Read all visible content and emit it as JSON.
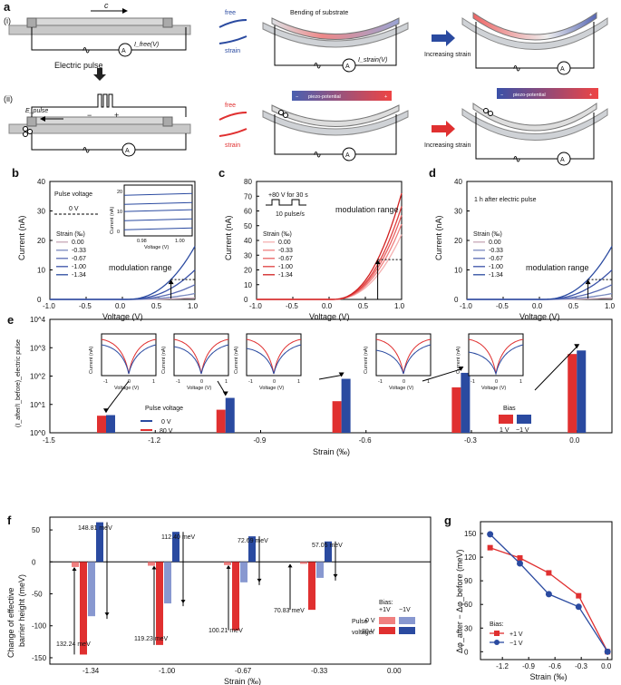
{
  "colors": {
    "red": "#e03030",
    "blue": "#2a4aa0",
    "lightred": "#f08080",
    "lightblue": "#8898d0",
    "gray": "#c0c0c0"
  },
  "panel_a": {
    "label": "a",
    "sub_i": "(i)",
    "sub_ii": "(ii)",
    "c_label": "c",
    "i_free": "I_free(V)",
    "i_strain": "I_strain(V)",
    "electric_pulse": "Electric pulse",
    "e_pulse": "E_pulse",
    "minus": "−",
    "plus": "+",
    "free": "free",
    "strain": "strain",
    "bending": "Bending of substrate",
    "increasing_strain": "Increasing strain",
    "piezo": "piezo-potential",
    "ammeter": "A"
  },
  "chart_data": [
    {
      "id": "b",
      "type": "line",
      "label": "b",
      "title": "Pulse voltage",
      "pulse": "0 V",
      "xlabel": "Voltage (V)",
      "ylabel": "Current (nA)",
      "xlim": [
        -1,
        1
      ],
      "ylim": [
        0,
        40
      ],
      "xticks": [
        "-1.0",
        "-0.5",
        "0.0",
        "0.5",
        "1.0"
      ],
      "yticks": [
        "0",
        "10",
        "20",
        "30",
        "40"
      ],
      "legend_title": "Strain (‰)",
      "strains": [
        "0.00",
        "-0.33",
        "-0.67",
        "-1.00",
        "-1.34"
      ],
      "endpoints": [
        0.5,
        2,
        5,
        10,
        18
      ],
      "annotation": "modulation range",
      "inset": {
        "xticks": [
          "0.98",
          "1.00"
        ],
        "yticks": [
          "0",
          "10",
          "20"
        ],
        "ylabel": "Current (nA)",
        "xlabel": "Voltage (V)"
      }
    },
    {
      "id": "c",
      "type": "line",
      "label": "c",
      "pulse": "+80 V for 30 s",
      "rate": "10 pulse/s",
      "xlabel": "Voltage (V)",
      "ylabel": "Current (nA)",
      "xlim": [
        -1,
        1
      ],
      "ylim": [
        0,
        80
      ],
      "xticks": [
        "-1.0",
        "-0.5",
        "0.0",
        "0.5",
        "1.0"
      ],
      "yticks": [
        "0",
        "10",
        "20",
        "30",
        "40",
        "50",
        "60",
        "70",
        "80"
      ],
      "legend_title": "Strain (‰)",
      "strains": [
        "0.00",
        "-0.33",
        "-0.67",
        "-1.00",
        "-1.34"
      ],
      "endpoints": [
        44,
        51,
        57,
        63,
        72
      ],
      "annotation": "modulation range"
    },
    {
      "id": "d",
      "type": "line",
      "label": "d",
      "note": "1 h after electric pulse",
      "xlabel": "Voltage (V)",
      "ylabel": "Current (nA)",
      "xlim": [
        -1,
        1
      ],
      "ylim": [
        0,
        40
      ],
      "xticks": [
        "-1.0",
        "-0.5",
        "0.0",
        "0.5",
        "1.0"
      ],
      "yticks": [
        "0",
        "10",
        "20",
        "30",
        "40"
      ],
      "legend_title": "Strain (‰)",
      "strains": [
        "0.00",
        "-0.33",
        "-0.67",
        "-1.00",
        "-1.34"
      ],
      "endpoints": [
        0.5,
        2,
        5,
        10,
        18
      ],
      "annotation": "modulation range"
    },
    {
      "id": "e",
      "type": "bar",
      "label": "e",
      "xlabel": "Strain (‰)",
      "ylabel": "(I_after/I_before)_electric pulse",
      "yscale": "log",
      "xticks": [
        "-1.5",
        "-1.2",
        "-0.9",
        "-0.6",
        "-0.3",
        "0.0"
      ],
      "yticks": [
        "10^0",
        "10^1",
        "10^2",
        "10^3",
        "10^4"
      ],
      "categories": [
        -1.34,
        -1.0,
        -0.67,
        -0.33,
        0.0
      ],
      "series": [
        {
          "name": "1 V",
          "values": [
            4,
            6.5,
            13,
            40,
            600
          ]
        },
        {
          "name": "-1 V",
          "values": [
            4.2,
            17,
            80,
            130,
            800
          ]
        }
      ],
      "legend_pulse_title": "Pulse voltage",
      "legend_pulse": [
        "0 V",
        "80 V"
      ],
      "legend_bias_title": "Bias",
      "legend_bias": [
        "1 V",
        "−1 V"
      ],
      "inset_ylabel": "Current (nA)",
      "inset_xlabel": "Voltage (V)",
      "inset_xticks": [
        "-1",
        "0",
        "1"
      ]
    },
    {
      "id": "f",
      "type": "bar",
      "label": "f",
      "xlabel": "Strain (‰)",
      "ylabel1": "Change of effective",
      "ylabel2": "barrier height (meV)",
      "categories": [
        "-1.34",
        "-1.00",
        "-0.67",
        "-0.33",
        "0.00"
      ],
      "yticks": [
        "-150",
        "-100",
        "-50",
        "0",
        "50"
      ],
      "ylim": [
        -160,
        70
      ],
      "series": [
        {
          "name": "0 V, +1 V",
          "values": [
            -8,
            -6,
            -5,
            -3,
            0
          ]
        },
        {
          "name": "80 V, +1 V",
          "values": [
            -145,
            -130,
            -107,
            -75,
            0
          ]
        },
        {
          "name": "0 V, -1 V",
          "values": [
            -85,
            -65,
            -32,
            -25,
            0
          ]
        },
        {
          "name": "80 V, -1 V",
          "values": [
            62,
            47,
            40,
            32,
            0
          ]
        }
      ],
      "annotations": [
        "132.24 meV",
        "148.81 meV",
        "119.23 meV",
        "112.40 meV",
        "100.21 meV",
        "72.69 meV",
        "70.83 meV",
        "57.05 meV"
      ],
      "legend_bias": "Bias:",
      "legend_p1": "+1V",
      "legend_m1": "−1V",
      "legend_pulse": "Pulse",
      "legend_voltage": "voltage:",
      "legend_0v": "0 V",
      "legend_80v": "80 V"
    },
    {
      "id": "g",
      "type": "line",
      "label": "g",
      "xlabel": "Strain (‰)",
      "ylabel": "Δφ_after − Δφ_before (meV)",
      "xlim": [
        -1.45,
        0.05
      ],
      "ylim": [
        -10,
        165
      ],
      "xticks": [
        "-1.2",
        "-0.9",
        "-0.6",
        "-0.3",
        "0.0"
      ],
      "yticks": [
        "0",
        "30",
        "60",
        "90",
        "120",
        "150"
      ],
      "x": [
        -1.34,
        -1.0,
        -0.67,
        -0.33,
        0.0
      ],
      "series": [
        {
          "name": "+1 V",
          "values": [
            132,
            119,
            100,
            71,
            0
          ]
        },
        {
          "name": "−1 V",
          "values": [
            149,
            112,
            73,
            57,
            0
          ]
        }
      ],
      "legend_title": "Bias:"
    }
  ]
}
